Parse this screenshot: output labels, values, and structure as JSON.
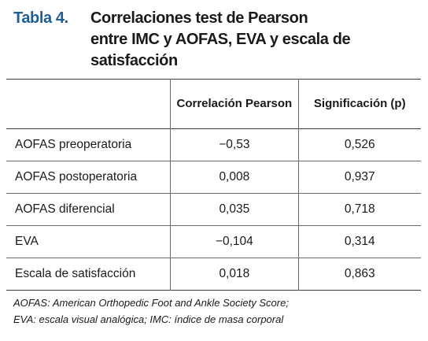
{
  "caption": {
    "label": "Tabla 4.",
    "lines": [
      "Correlaciones test de Pearson",
      "entre IMC y AOFAS, EVA y escala de",
      "satisfacción"
    ]
  },
  "table": {
    "headers": [
      "",
      "Correlación Pearson",
      "Significación (p)"
    ],
    "rows": [
      {
        "label": "AOFAS preoperatoria",
        "correlation": "−0,53",
        "p": "0,526"
      },
      {
        "label": "AOFAS postoperatoria",
        "correlation": "0,008",
        "p": "0,937"
      },
      {
        "label": "AOFAS diferencial",
        "correlation": "0,035",
        "p": "0,718"
      },
      {
        "label": "EVA",
        "correlation": "−0,104",
        "p": "0,314"
      },
      {
        "label": "Escala de satisfacción",
        "correlation": "0,018",
        "p": "0,863"
      }
    ]
  },
  "footnote": {
    "lines": [
      "AOFAS: American Orthopedic Foot and Ankle Society Score;",
      "EVA: escala visual analógica; IMC: índice de masa corporal"
    ]
  }
}
